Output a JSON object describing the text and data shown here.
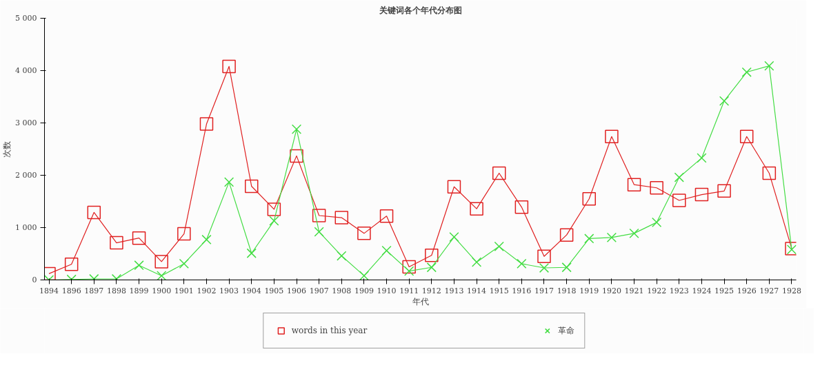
{
  "chart_data": {
    "type": "line",
    "title": "关键词各个年代分布图",
    "xlabel": "年代",
    "ylabel": "次数",
    "categories": [
      "1894",
      "1896",
      "1897",
      "1898",
      "1899",
      "1900",
      "1901",
      "1902",
      "1903",
      "1904",
      "1905",
      "1906",
      "1907",
      "1908",
      "1909",
      "1910",
      "1911",
      "1912",
      "1913",
      "1914",
      "1915",
      "1916",
      "1917",
      "1918",
      "1919",
      "1920",
      "1921",
      "1922",
      "1923",
      "1924",
      "1925",
      "1926",
      "1927",
      "1928"
    ],
    "series": [
      {
        "name": "words in this year",
        "color": "#e02020",
        "marker": "square",
        "values": [
          120,
          300,
          1290,
          710,
          800,
          350,
          880,
          2980,
          4080,
          1790,
          1350,
          2370,
          1230,
          1190,
          890,
          1220,
          250,
          470,
          1780,
          1360,
          2040,
          1390,
          450,
          860,
          1550,
          2740,
          1820,
          1760,
          1520,
          1630,
          1700,
          2740,
          2040,
          600
        ]
      },
      {
        "name": "革命",
        "color": "#44dd44",
        "marker": "cross",
        "values": [
          0,
          10,
          20,
          20,
          280,
          80,
          310,
          770,
          1870,
          510,
          1130,
          2880,
          920,
          460,
          80,
          560,
          170,
          240,
          820,
          340,
          640,
          310,
          230,
          240,
          790,
          810,
          890,
          1100,
          1960,
          2330,
          3420,
          3970,
          4090,
          580
        ]
      }
    ],
    "ylim": [
      0,
      5000
    ],
    "yticks": [
      {
        "value": 0,
        "label": "0"
      },
      {
        "value": 1000,
        "label": "1 000"
      },
      {
        "value": 2000,
        "label": "2 000"
      },
      {
        "value": 3000,
        "label": "3 000"
      },
      {
        "value": 4000,
        "label": "4 000"
      },
      {
        "value": 5000,
        "label": "5 000"
      }
    ],
    "grid": false,
    "legend": "bottom"
  }
}
